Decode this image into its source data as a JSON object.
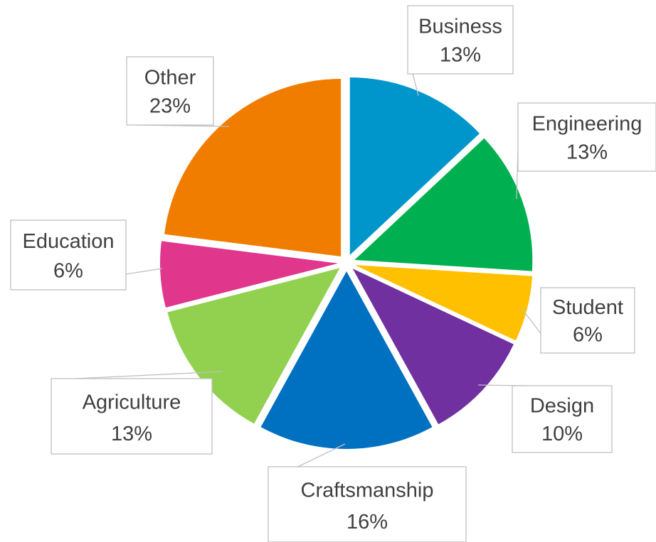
{
  "chart_data": {
    "type": "pie",
    "title": "",
    "exploded": true,
    "legend": "none",
    "data_labels": "callouts",
    "slices": [
      {
        "category": "Business",
        "value": 13,
        "label": "13%",
        "color": "#0096CC"
      },
      {
        "category": "Engineering",
        "value": 13,
        "label": "13%",
        "color": "#00B050"
      },
      {
        "category": "Student",
        "value": 6,
        "label": "6%",
        "color": "#FFC000"
      },
      {
        "category": "Design",
        "value": 10,
        "label": "10%",
        "color": "#7030A0"
      },
      {
        "category": "Craftsmanship",
        "value": 16,
        "label": "16%",
        "color": "#0070C0"
      },
      {
        "category": "Agriculture",
        "value": 13,
        "label": "13%",
        "color": "#92D050"
      },
      {
        "category": "Education",
        "value": 6,
        "label": "6%",
        "color": "#E0368C"
      },
      {
        "category": "Other",
        "value": 23,
        "label": "23%",
        "color": "#F07D00"
      }
    ]
  }
}
